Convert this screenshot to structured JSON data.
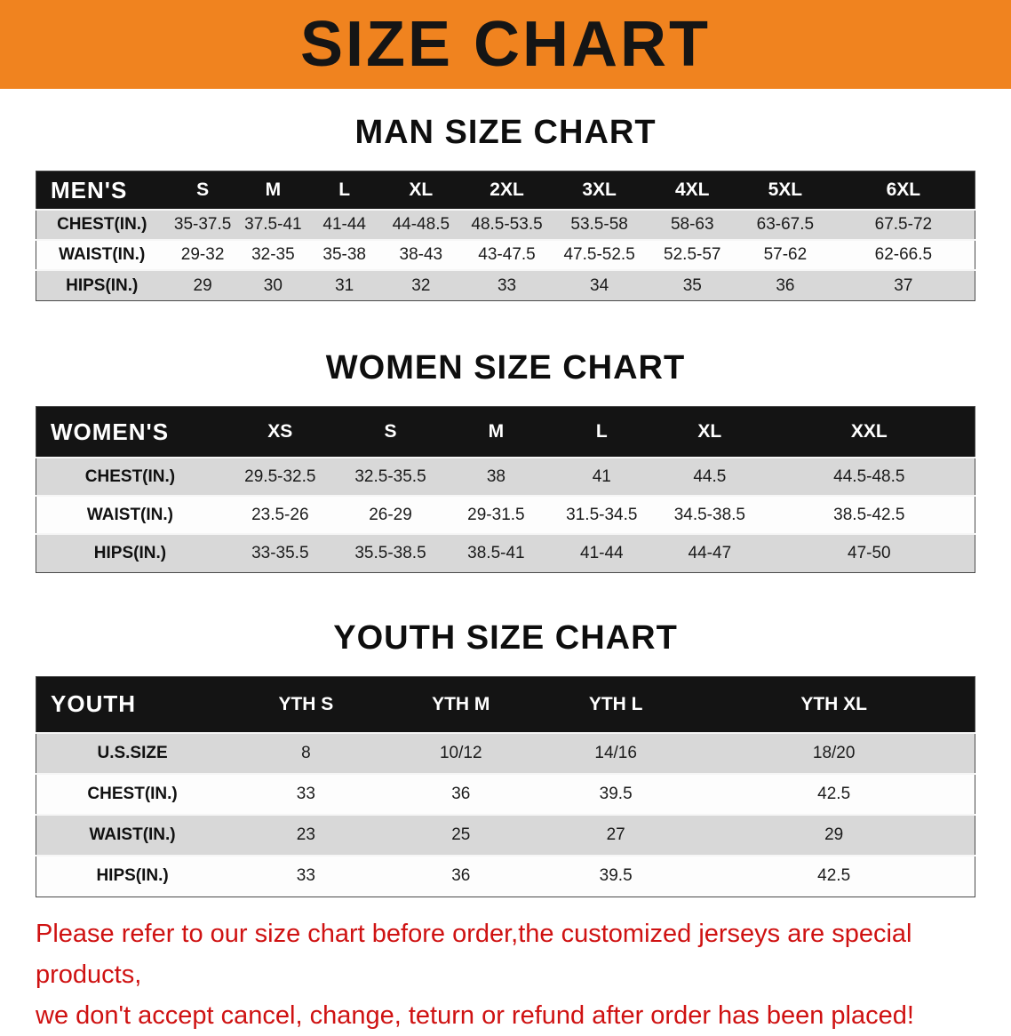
{
  "banner": {
    "title": "SIZE CHART"
  },
  "colors": {
    "banner_bg": "#f0831f",
    "header_bg": "#141414",
    "row_alt_bg": "#d8d8d8",
    "note_color": "#cf1212"
  },
  "men": {
    "heading": "MAN SIZE CHART",
    "table": {
      "header": [
        "MEN'S",
        "S",
        "M",
        "L",
        "XL",
        "2XL",
        "3XL",
        "4XL",
        "5XL",
        "6XL"
      ],
      "rows": [
        [
          "CHEST(IN.)",
          "35-37.5",
          "37.5-41",
          "41-44",
          "44-48.5",
          "48.5-53.5",
          "53.5-58",
          "58-63",
          "63-67.5",
          "67.5-72"
        ],
        [
          "WAIST(IN.)",
          "29-32",
          "32-35",
          "35-38",
          "38-43",
          "43-47.5",
          "47.5-52.5",
          "52.5-57",
          "57-62",
          "62-66.5"
        ],
        [
          "HIPS(IN.)",
          "29",
          "30",
          "31",
          "32",
          "33",
          "34",
          "35",
          "36",
          "37"
        ]
      ]
    }
  },
  "women": {
    "heading": "WOMEN SIZE CHART",
    "table": {
      "header": [
        "WOMEN'S",
        "XS",
        "S",
        "M",
        "L",
        "XL",
        "XXL"
      ],
      "rows": [
        [
          "CHEST(IN.)",
          "29.5-32.5",
          "32.5-35.5",
          "38",
          "41",
          "44.5",
          "44.5-48.5"
        ],
        [
          "WAIST(IN.)",
          "23.5-26",
          "26-29",
          "29-31.5",
          "31.5-34.5",
          "34.5-38.5",
          "38.5-42.5"
        ],
        [
          "HIPS(IN.)",
          "33-35.5",
          "35.5-38.5",
          "38.5-41",
          "41-44",
          "44-47",
          "47-50"
        ]
      ]
    }
  },
  "youth": {
    "heading": "YOUTH SIZE CHART",
    "table": {
      "header": [
        "YOUTH",
        "YTH S",
        "YTH M",
        "YTH L",
        "YTH XL"
      ],
      "rows": [
        [
          "U.S.SIZE",
          "8",
          "10/12",
          "14/16",
          "18/20"
        ],
        [
          "CHEST(IN.)",
          "33",
          "36",
          "39.5",
          "42.5"
        ],
        [
          "WAIST(IN.)",
          "23",
          "25",
          "27",
          "29"
        ],
        [
          "HIPS(IN.)",
          "33",
          "36",
          "39.5",
          "42.5"
        ]
      ]
    }
  },
  "note": {
    "line1": "Please refer to our size chart before order,the customized jerseys are special products,",
    "line2": "we don't accept cancel, change, teturn or refund after order has been placed!"
  }
}
